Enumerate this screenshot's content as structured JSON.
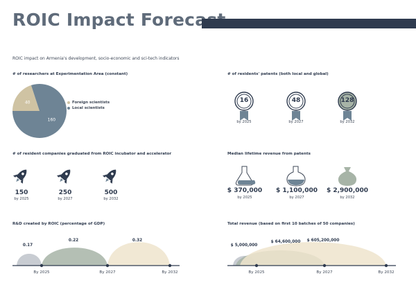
{
  "header": {
    "title": "ROIC Impact Forecast",
    "subtitle": "ROIC impact on Armenia's development, socio-economic and sci-tech indicators"
  },
  "colors": {
    "navy": "#2f3b4f",
    "slate": "#6e8495",
    "beige": "#cfc3a3",
    "sage": "#a7b4a7",
    "cream": "#efe4cc"
  },
  "researchers": {
    "title": "# of researchers at Experimentation Area (constant)",
    "legend_foreign": "Foreign scientists",
    "legend_local": "Local scientists"
  },
  "patents": {
    "title": "# of residents' patents (both local and global)",
    "items": [
      {
        "value": "16",
        "label": "by 2025",
        "icon": "medal-icon"
      },
      {
        "value": "48",
        "label": "by 2027",
        "icon": "medal-icon"
      },
      {
        "value": "128",
        "label": "by 2032",
        "icon": "medal-icon"
      }
    ]
  },
  "companies": {
    "title": "# of resident companies graduated from ROIC incubator and accelerator",
    "items": [
      {
        "value": "150",
        "label": "by 2025",
        "icon": "rocket-icon"
      },
      {
        "value": "250",
        "label": "by 2027",
        "icon": "rocket-icon"
      },
      {
        "value": "500",
        "label": "by 2032",
        "icon": "rocket-icon"
      }
    ]
  },
  "revenue_patents": {
    "title": "Median lifetime revenue from patents",
    "items": [
      {
        "value": "$ 370,000",
        "label": "by 2025",
        "icon": "flask-icon"
      },
      {
        "value": "$ 1,100,000",
        "label": "by 2027",
        "icon": "flask-icon"
      },
      {
        "value": "$ 2,900,000",
        "label": "by 2032",
        "icon": "money-bag-icon"
      }
    ]
  },
  "rd": {
    "title": "R&D created by ROIC (percentage of GDP)",
    "value_labels": [
      "0.17",
      "0.22",
      "0.32"
    ],
    "axis_labels": [
      "By 2025",
      "By 2027",
      "By 2032"
    ]
  },
  "total_revenue": {
    "title": "Total revenue (based on first 10 batches of 50 companies)",
    "value_labels": [
      "$ 5,000,000",
      "$ 64,600,000",
      "$ 605,200,000"
    ],
    "axis_labels": [
      "By 2025",
      "By 2027",
      "By 2032"
    ]
  },
  "chart_data": [
    {
      "type": "pie",
      "title": "# of researchers at Experimentation Area (constant)",
      "categories": [
        "Foreign scientists",
        "Local scientists"
      ],
      "values": [
        40,
        160
      ],
      "colors": [
        "#cfc3a3",
        "#6e8495"
      ]
    },
    {
      "type": "area",
      "title": "R&D created by ROIC (percentage of GDP)",
      "categories": [
        "By 2025",
        "By 2027",
        "By 2032"
      ],
      "values": [
        0.17,
        0.22,
        0.32
      ],
      "colors": [
        "#c8ccd2",
        "#a7b4a7",
        "#efe4cc"
      ]
    },
    {
      "type": "area",
      "title": "Total revenue (based on first 10 batches of 50 companies)",
      "categories": [
        "By 2025",
        "By 2027",
        "By 2032"
      ],
      "values": [
        5000000,
        64600000,
        605200000
      ],
      "colors": [
        "#c8ccd2",
        "#a7b4a7",
        "#efe4cc"
      ]
    }
  ]
}
